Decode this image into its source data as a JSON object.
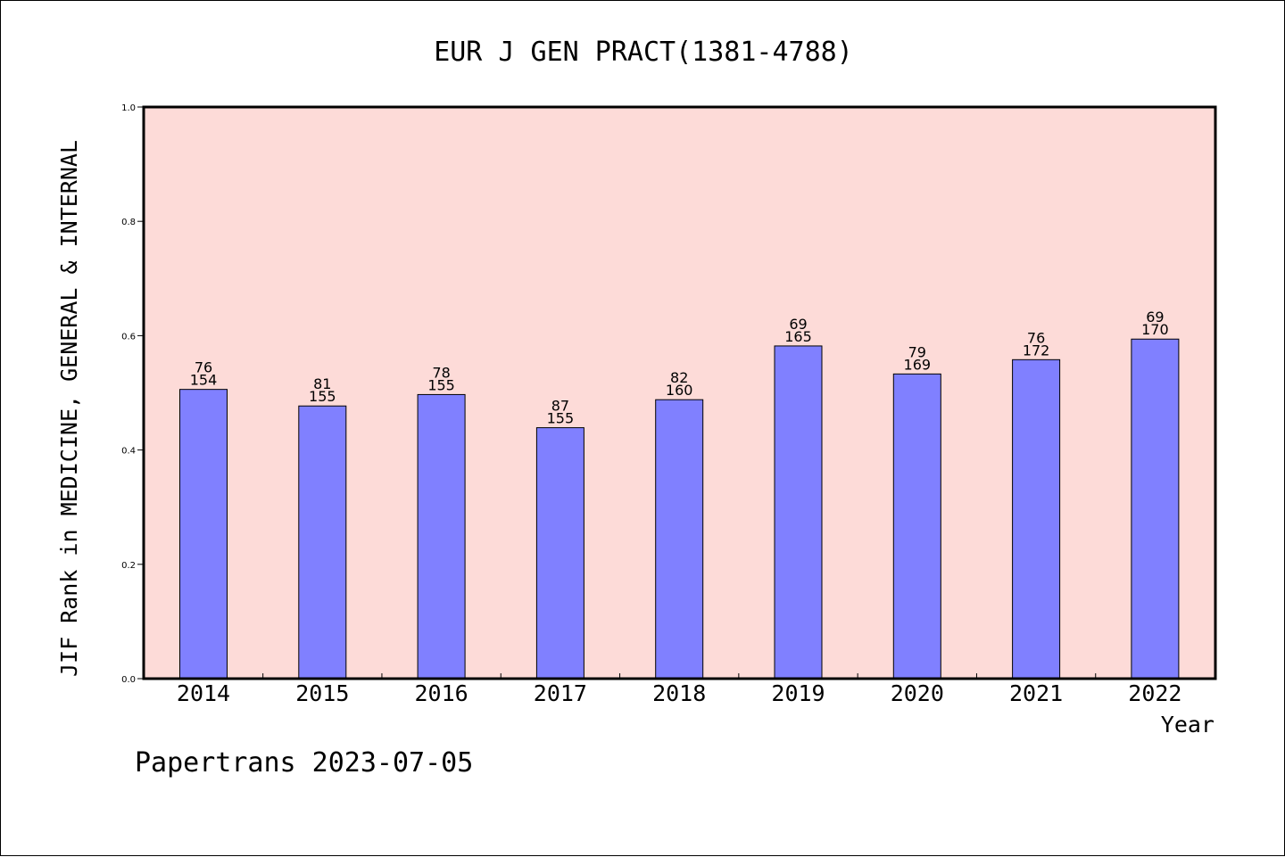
{
  "chart_data": {
    "type": "bar",
    "title": "EUR J GEN PRACT(1381-4788)",
    "xlabel": "Year",
    "ylabel": "JIF Rank in MEDICINE, GENERAL & INTERNAL",
    "ylim": [
      0,
      1.0
    ],
    "yticks": [
      "0.0",
      "0.2",
      "0.4",
      "0.6",
      "0.8",
      "1.0"
    ],
    "categories": [
      "2014",
      "2015",
      "2016",
      "2017",
      "2018",
      "2019",
      "2020",
      "2021",
      "2022"
    ],
    "values": [
      0.506,
      0.477,
      0.497,
      0.439,
      0.488,
      0.582,
      0.533,
      0.558,
      0.594
    ],
    "labels_rank": [
      "76",
      "81",
      "78",
      "87",
      "82",
      "69",
      "79",
      "76",
      "69"
    ],
    "labels_total": [
      "154",
      "155",
      "155",
      "155",
      "160",
      "165",
      "169",
      "172",
      "170"
    ],
    "grid": false,
    "plot_background": "#fddbd8",
    "bar_color": "#8080ff"
  },
  "footer": "Papertrans 2023-07-05"
}
